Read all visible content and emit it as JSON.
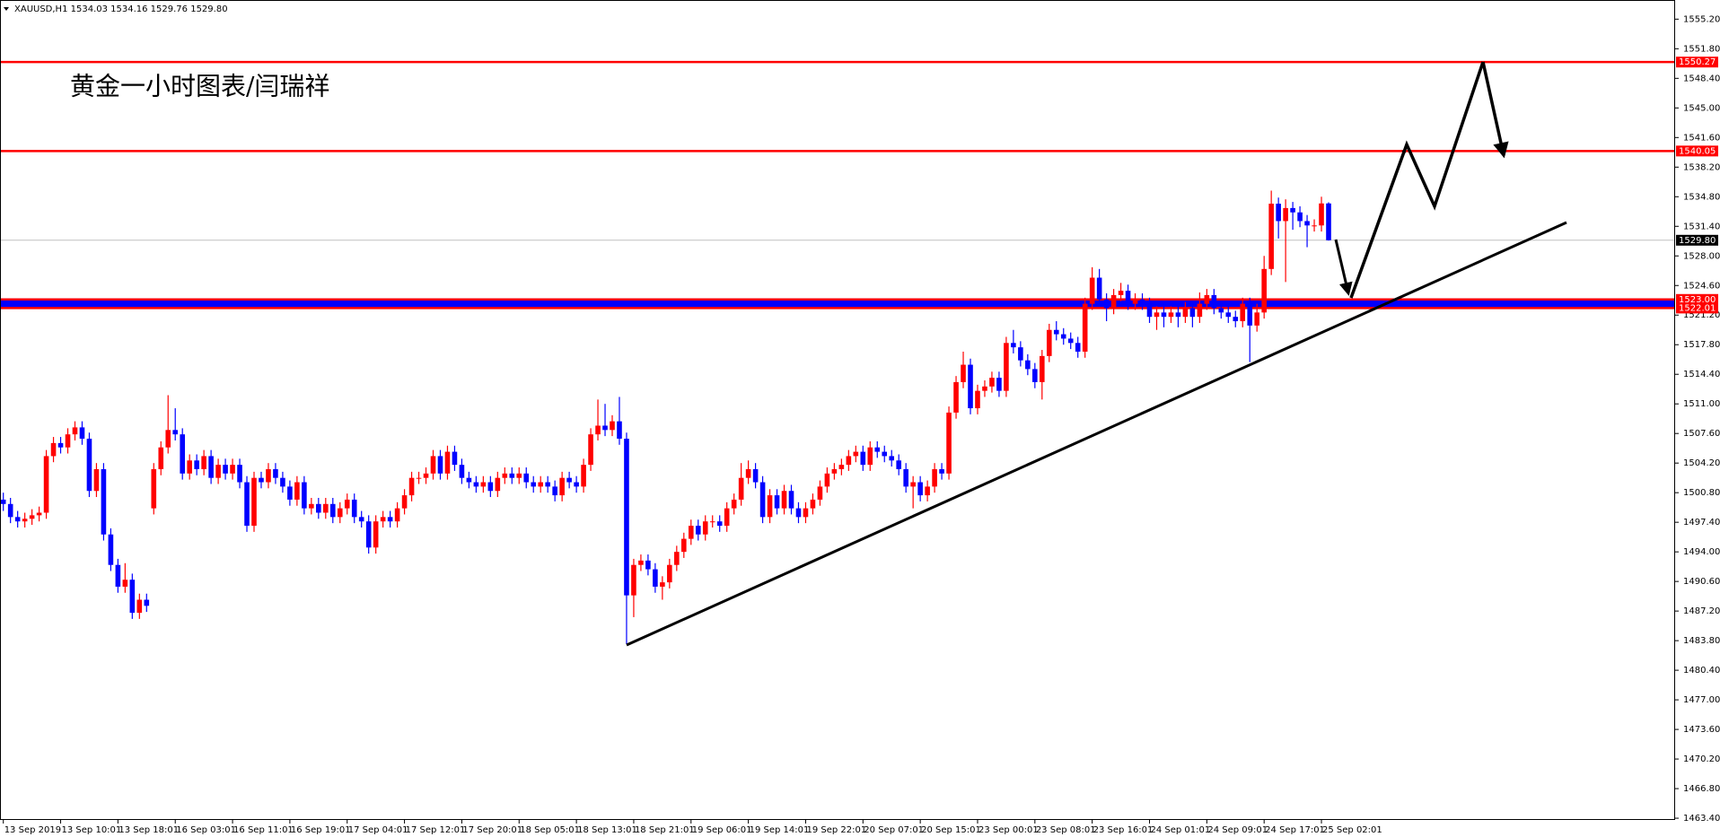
{
  "chart_data": {
    "type": "candlestick",
    "header": "XAUUSD,H1  1534.03 1534.16 1529.76 1529.80",
    "annotation": "黄金一小时图表/闫瑞祥",
    "up_color": "#ff0000",
    "down_color": "#0000ff",
    "ylim": [
      1463.2,
      1557.4
    ],
    "yticks": [
      {
        "value": 1555.2,
        "label": "1555.20"
      },
      {
        "value": 1551.8,
        "label": "1551.80"
      },
      {
        "value": 1548.4,
        "label": "1548.40"
      },
      {
        "value": 1545,
        "label": "1545.00"
      },
      {
        "value": 1541.6,
        "label": "1541.60"
      },
      {
        "value": 1538.2,
        "label": "1538.20"
      },
      {
        "value": 1534.8,
        "label": "1534.80"
      },
      {
        "value": 1531.4,
        "label": "1531.40"
      },
      {
        "value": 1528,
        "label": "1528.00"
      },
      {
        "value": 1524.6,
        "label": "1524.60"
      },
      {
        "value": 1521.2,
        "label": "1521.20"
      },
      {
        "value": 1517.8,
        "label": "1517.80"
      },
      {
        "value": 1514.4,
        "label": "1514.40"
      },
      {
        "value": 1511,
        "label": "1511.00"
      },
      {
        "value": 1507.6,
        "label": "1507.60"
      },
      {
        "value": 1504.2,
        "label": "1504.20"
      },
      {
        "value": 1500.8,
        "label": "1500.80"
      },
      {
        "value": 1497.4,
        "label": "1497.40"
      },
      {
        "value": 1494,
        "label": "1494.00"
      },
      {
        "value": 1490.6,
        "label": "1490.60"
      },
      {
        "value": 1487.2,
        "label": "1487.20"
      },
      {
        "value": 1483.8,
        "label": "1483.80"
      },
      {
        "value": 1480.4,
        "label": "1480.40"
      },
      {
        "value": 1477,
        "label": "1477.00"
      },
      {
        "value": 1473.6,
        "label": "1473.60"
      },
      {
        "value": 1470.2,
        "label": "1470.20"
      },
      {
        "value": 1466.8,
        "label": "1466.80"
      },
      {
        "value": 1463.4,
        "label": "1463.40"
      }
    ],
    "xticks": [
      {
        "value": 0,
        "label": "13 Sep 2019"
      },
      {
        "value": 8,
        "label": "13 Sep 10:01"
      },
      {
        "value": 16,
        "label": "13 Sep 18:01"
      },
      {
        "value": 24,
        "label": "16 Sep 03:01"
      },
      {
        "value": 32,
        "label": "16 Sep 11:01"
      },
      {
        "value": 40,
        "label": "16 Sep 19:01"
      },
      {
        "value": 48,
        "label": "17 Sep 04:01"
      },
      {
        "value": 56,
        "label": "17 Sep 12:01"
      },
      {
        "value": 64,
        "label": "17 Sep 20:01"
      },
      {
        "value": 72,
        "label": "18 Sep 05:01"
      },
      {
        "value": 80,
        "label": "18 Sep 13:01"
      },
      {
        "value": 88,
        "label": "18 Sep 21:01"
      },
      {
        "value": 96,
        "label": "19 Sep 06:01"
      },
      {
        "value": 104,
        "label": "19 Sep 14:01"
      },
      {
        "value": 112,
        "label": "19 Sep 22:01"
      },
      {
        "value": 120,
        "label": "20 Sep 07:01"
      },
      {
        "value": 128,
        "label": "20 Sep 15:01"
      },
      {
        "value": 136,
        "label": "23 Sep 00:01"
      },
      {
        "value": 144,
        "label": "23 Sep 08:01"
      },
      {
        "value": 152,
        "label": "23 Sep 16:01"
      },
      {
        "value": 160,
        "label": "24 Sep 01:01"
      },
      {
        "value": 168,
        "label": "24 Sep 09:01"
      },
      {
        "value": 176,
        "label": "24 Sep 17:01"
      },
      {
        "value": 184,
        "label": "25 Sep 02:01"
      }
    ],
    "levels": [
      {
        "value": 1550.27,
        "label": "1550.27",
        "color": "#ff0000",
        "tag_color": "#ff0000"
      },
      {
        "value": 1540.05,
        "label": "1540.05",
        "color": "#ff0000",
        "tag_color": "#ff0000"
      },
      {
        "value": 1529.8,
        "label": "1529.80",
        "color": "#c0c0c0",
        "tag_color": "#000000"
      },
      {
        "value": 1523,
        "label": "1523.00",
        "color": "#ff0000",
        "tag_color": "#ff0000"
      },
      {
        "value": 1522.01,
        "label": "1522.01",
        "color": "#ff0000",
        "tag_color": "#ff0000"
      }
    ],
    "band_color": "#0000ff",
    "ohlc": [
      [
        1500.0,
        1500.8,
        1498.7,
        1499.5
      ],
      [
        1499.5,
        1500.2,
        1497.3,
        1498.0
      ],
      [
        1498.0,
        1498.7,
        1496.8,
        1497.5
      ],
      [
        1497.5,
        1498.5,
        1496.8,
        1497.8
      ],
      [
        1497.8,
        1498.9,
        1497.1,
        1498.2
      ],
      [
        1498.2,
        1499.2,
        1497.5,
        1498.5
      ],
      [
        1498.5,
        1505.7,
        1497.8,
        1505.0
      ],
      [
        1505.0,
        1507.2,
        1504.3,
        1506.5
      ],
      [
        1506.5,
        1507.2,
        1505.3,
        1506.0
      ],
      [
        1506.0,
        1508.2,
        1505.3,
        1507.5
      ],
      [
        1507.5,
        1509.0,
        1506.8,
        1508.3
      ],
      [
        1508.3,
        1509.0,
        1506.3,
        1507.0
      ],
      [
        1507.0,
        1507.7,
        1500.3,
        1501.0
      ],
      [
        1501.0,
        1504.2,
        1500.3,
        1503.5
      ],
      [
        1503.5,
        1504.2,
        1495.3,
        1496.0
      ],
      [
        1496.0,
        1496.7,
        1491.8,
        1492.5
      ],
      [
        1492.5,
        1493.2,
        1489.3,
        1490.0
      ],
      [
        1490.0,
        1492.7,
        1489.3,
        1490.8
      ],
      [
        1490.8,
        1491.5,
        1486.3,
        1487.0
      ],
      [
        1487.0,
        1489.2,
        1486.3,
        1488.5
      ],
      [
        1488.5,
        1489.2,
        1487.1,
        1487.8
      ],
      [
        1499.0,
        1504.2,
        1498.3,
        1503.5
      ],
      [
        1503.5,
        1506.7,
        1502.8,
        1506.0
      ],
      [
        1506.0,
        1512.0,
        1505.3,
        1508.0
      ],
      [
        1508.0,
        1510.5,
        1506.8,
        1507.5
      ],
      [
        1507.5,
        1508.2,
        1502.3,
        1503.0
      ],
      [
        1503.0,
        1505.2,
        1502.3,
        1504.5
      ],
      [
        1504.5,
        1505.2,
        1502.8,
        1503.5
      ],
      [
        1503.5,
        1505.7,
        1502.8,
        1505.0
      ],
      [
        1505.0,
        1505.7,
        1501.8,
        1502.5
      ],
      [
        1502.5,
        1504.7,
        1501.8,
        1504.0
      ],
      [
        1504.0,
        1504.7,
        1502.3,
        1503.0
      ],
      [
        1503.0,
        1504.7,
        1502.3,
        1504.0
      ],
      [
        1504.0,
        1504.7,
        1501.3,
        1502.0
      ],
      [
        1502.0,
        1502.7,
        1496.3,
        1497.0
      ],
      [
        1497.0,
        1503.2,
        1496.3,
        1502.5
      ],
      [
        1502.5,
        1503.2,
        1501.3,
        1502.0
      ],
      [
        1502.0,
        1504.2,
        1501.3,
        1503.5
      ],
      [
        1503.5,
        1504.2,
        1501.8,
        1502.5
      ],
      [
        1502.5,
        1503.2,
        1500.8,
        1501.5
      ],
      [
        1501.5,
        1502.2,
        1499.3,
        1500.0
      ],
      [
        1500.0,
        1502.7,
        1499.3,
        1502.0
      ],
      [
        1502.0,
        1502.7,
        1498.3,
        1499.0
      ],
      [
        1499.0,
        1500.2,
        1498.3,
        1499.5
      ],
      [
        1499.5,
        1500.2,
        1497.8,
        1498.5
      ],
      [
        1498.5,
        1500.2,
        1497.8,
        1499.5
      ],
      [
        1499.5,
        1500.2,
        1497.3,
        1498.0
      ],
      [
        1498.0,
        1499.7,
        1497.3,
        1499.0
      ],
      [
        1499.0,
        1500.7,
        1498.3,
        1500.0
      ],
      [
        1500.0,
        1500.7,
        1497.3,
        1498.0
      ],
      [
        1498.0,
        1498.7,
        1496.8,
        1497.5
      ],
      [
        1497.5,
        1498.2,
        1493.8,
        1494.5
      ],
      [
        1494.5,
        1498.2,
        1493.8,
        1497.5
      ],
      [
        1497.5,
        1498.7,
        1496.8,
        1498.0
      ],
      [
        1498.0,
        1498.7,
        1496.8,
        1497.5
      ],
      [
        1497.5,
        1499.7,
        1496.8,
        1499.0
      ],
      [
        1499.0,
        1501.2,
        1498.3,
        1500.5
      ],
      [
        1500.5,
        1503.2,
        1499.8,
        1502.5
      ],
      [
        1502.5,
        1503.2,
        1501.8,
        1502.5
      ],
      [
        1502.5,
        1503.7,
        1501.8,
        1503.0
      ],
      [
        1503.0,
        1505.7,
        1502.3,
        1505.0
      ],
      [
        1505.0,
        1505.7,
        1502.3,
        1503.0
      ],
      [
        1503.0,
        1506.2,
        1502.3,
        1505.5
      ],
      [
        1505.5,
        1506.2,
        1503.3,
        1504.0
      ],
      [
        1504.0,
        1504.7,
        1501.8,
        1502.5
      ],
      [
        1502.5,
        1503.2,
        1501.3,
        1502.0
      ],
      [
        1502.0,
        1502.7,
        1500.8,
        1501.5
      ],
      [
        1501.5,
        1502.7,
        1500.8,
        1502.0
      ],
      [
        1502.0,
        1502.7,
        1500.3,
        1501.0
      ],
      [
        1501.0,
        1503.2,
        1500.3,
        1502.5
      ],
      [
        1502.5,
        1503.7,
        1501.8,
        1503.0
      ],
      [
        1503.0,
        1503.7,
        1501.8,
        1502.5
      ],
      [
        1502.5,
        1503.7,
        1501.8,
        1503.0
      ],
      [
        1503.0,
        1503.7,
        1501.3,
        1502.0
      ],
      [
        1502.0,
        1502.7,
        1500.8,
        1501.5
      ],
      [
        1501.5,
        1502.7,
        1500.8,
        1502.0
      ],
      [
        1502.0,
        1502.7,
        1500.8,
        1501.5
      ],
      [
        1501.5,
        1502.2,
        1499.8,
        1500.5
      ],
      [
        1500.5,
        1503.2,
        1499.8,
        1502.5
      ],
      [
        1502.5,
        1503.2,
        1501.3,
        1502.0
      ],
      [
        1502.0,
        1502.7,
        1500.8,
        1501.5
      ],
      [
        1501.5,
        1504.7,
        1500.8,
        1504.0
      ],
      [
        1504.0,
        1508.2,
        1503.3,
        1507.5
      ],
      [
        1507.5,
        1511.5,
        1506.8,
        1508.5
      ],
      [
        1508.5,
        1511.0,
        1507.3,
        1508.0
      ],
      [
        1508.0,
        1509.7,
        1507.3,
        1509.0
      ],
      [
        1509.0,
        1511.8,
        1506.3,
        1507.0
      ],
      [
        1507.0,
        1507.7,
        1483.4,
        1489.0
      ],
      [
        1489.0,
        1493.2,
        1486.5,
        1492.5
      ],
      [
        1492.5,
        1493.7,
        1491.8,
        1493.0
      ],
      [
        1493.0,
        1493.7,
        1491.3,
        1492.0
      ],
      [
        1492.0,
        1492.7,
        1489.3,
        1490.0
      ],
      [
        1490.0,
        1491.2,
        1488.5,
        1490.5
      ],
      [
        1490.5,
        1493.2,
        1489.8,
        1492.5
      ],
      [
        1492.5,
        1494.7,
        1491.8,
        1494.0
      ],
      [
        1494.0,
        1496.2,
        1493.3,
        1495.5
      ],
      [
        1495.5,
        1497.7,
        1494.8,
        1497.0
      ],
      [
        1497.0,
        1497.7,
        1495.3,
        1496.0
      ],
      [
        1496.0,
        1498.2,
        1495.3,
        1497.5
      ],
      [
        1497.5,
        1498.2,
        1496.8,
        1497.5
      ],
      [
        1497.5,
        1498.2,
        1496.3,
        1497.0
      ],
      [
        1497.0,
        1499.7,
        1496.3,
        1499.0
      ],
      [
        1499.0,
        1500.7,
        1498.3,
        1500.0
      ],
      [
        1500.0,
        1504.2,
        1499.3,
        1502.5
      ],
      [
        1502.5,
        1504.5,
        1501.8,
        1503.5
      ],
      [
        1503.5,
        1504.2,
        1501.3,
        1502.0
      ],
      [
        1502.0,
        1502.7,
        1497.3,
        1498.0
      ],
      [
        1498.0,
        1501.2,
        1497.3,
        1500.5
      ],
      [
        1500.5,
        1501.2,
        1498.3,
        1499.0
      ],
      [
        1499.0,
        1501.7,
        1498.3,
        1501.0
      ],
      [
        1501.0,
        1501.7,
        1498.3,
        1499.0
      ],
      [
        1499.0,
        1499.7,
        1497.3,
        1498.0
      ],
      [
        1498.0,
        1499.7,
        1497.3,
        1499.0
      ],
      [
        1499.0,
        1500.7,
        1498.3,
        1500.0
      ],
      [
        1500.0,
        1502.2,
        1499.3,
        1501.5
      ],
      [
        1501.5,
        1503.7,
        1500.8,
        1503.0
      ],
      [
        1503.0,
        1504.2,
        1502.3,
        1503.5
      ],
      [
        1503.5,
        1504.7,
        1502.8,
        1504.0
      ],
      [
        1504.0,
        1505.7,
        1503.3,
        1505.0
      ],
      [
        1505.0,
        1506.2,
        1504.3,
        1505.5
      ],
      [
        1505.5,
        1506.2,
        1503.3,
        1504.0
      ],
      [
        1504.0,
        1506.7,
        1503.3,
        1506.0
      ],
      [
        1506.0,
        1506.7,
        1504.8,
        1505.5
      ],
      [
        1505.5,
        1506.2,
        1504.3,
        1505.0
      ],
      [
        1505.0,
        1505.7,
        1503.8,
        1504.5
      ],
      [
        1504.5,
        1505.2,
        1502.8,
        1503.5
      ],
      [
        1503.5,
        1504.2,
        1500.8,
        1501.5
      ],
      [
        1501.5,
        1502.7,
        1499.0,
        1502.0
      ],
      [
        1502.0,
        1502.7,
        1499.8,
        1500.5
      ],
      [
        1500.5,
        1502.2,
        1499.8,
        1501.5
      ],
      [
        1501.5,
        1504.2,
        1500.8,
        1503.5
      ],
      [
        1503.5,
        1504.2,
        1502.3,
        1503.0
      ],
      [
        1503.0,
        1510.7,
        1502.3,
        1510.0
      ],
      [
        1510.0,
        1514.2,
        1509.3,
        1513.5
      ],
      [
        1513.5,
        1517.0,
        1512.8,
        1515.5
      ],
      [
        1515.5,
        1516.2,
        1509.8,
        1510.5
      ],
      [
        1510.5,
        1513.2,
        1509.8,
        1512.5
      ],
      [
        1512.5,
        1513.7,
        1511.8,
        1513.0
      ],
      [
        1513.0,
        1514.7,
        1512.3,
        1514.0
      ],
      [
        1514.0,
        1514.7,
        1511.8,
        1512.5
      ],
      [
        1512.5,
        1518.7,
        1511.8,
        1518.0
      ],
      [
        1518.0,
        1519.5,
        1516.8,
        1517.5
      ],
      [
        1517.5,
        1518.2,
        1515.3,
        1516.0
      ],
      [
        1516.0,
        1516.7,
        1514.3,
        1515.0
      ],
      [
        1515.0,
        1515.7,
        1512.8,
        1513.5
      ],
      [
        1513.5,
        1517.2,
        1511.5,
        1516.5
      ],
      [
        1516.5,
        1520.2,
        1515.8,
        1519.5
      ],
      [
        1519.5,
        1520.5,
        1518.3,
        1519.0
      ],
      [
        1519.0,
        1519.7,
        1517.8,
        1518.5
      ],
      [
        1518.5,
        1519.2,
        1517.3,
        1518.0
      ],
      [
        1518.0,
        1518.7,
        1516.3,
        1517.0
      ],
      [
        1517.0,
        1523.2,
        1516.3,
        1522.5
      ],
      [
        1522.5,
        1526.7,
        1521.8,
        1525.5
      ],
      [
        1525.5,
        1526.5,
        1522.3,
        1523.0
      ],
      [
        1523.0,
        1523.7,
        1520.5,
        1522.0
      ],
      [
        1522.0,
        1524.2,
        1521.3,
        1523.5
      ],
      [
        1523.5,
        1524.9,
        1522.8,
        1524.0
      ],
      [
        1524.0,
        1524.7,
        1521.8,
        1522.5
      ],
      [
        1522.5,
        1523.7,
        1521.8,
        1523.0
      ],
      [
        1523.0,
        1523.7,
        1521.8,
        1522.5
      ],
      [
        1522.5,
        1523.2,
        1520.3,
        1521.0
      ],
      [
        1521.0,
        1522.2,
        1519.5,
        1521.5
      ],
      [
        1521.5,
        1522.2,
        1519.8,
        1521.0
      ],
      [
        1521.0,
        1522.2,
        1520.3,
        1521.5
      ],
      [
        1521.5,
        1522.2,
        1519.8,
        1521.0
      ],
      [
        1521.0,
        1522.7,
        1520.3,
        1522.0
      ],
      [
        1522.0,
        1522.7,
        1519.8,
        1521.0
      ],
      [
        1521.0,
        1523.8,
        1520.3,
        1522.5
      ],
      [
        1522.5,
        1524.2,
        1521.8,
        1523.5
      ],
      [
        1523.5,
        1524.2,
        1521.3,
        1522.0
      ],
      [
        1522.0,
        1522.7,
        1520.8,
        1521.5
      ],
      [
        1521.5,
        1522.2,
        1520.3,
        1521.0
      ],
      [
        1521.0,
        1521.7,
        1519.8,
        1520.5
      ],
      [
        1520.5,
        1523.2,
        1519.8,
        1522.5
      ],
      [
        1522.5,
        1523.2,
        1515.8,
        1520.0
      ],
      [
        1520.0,
        1522.5,
        1519.3,
        1521.5
      ],
      [
        1521.5,
        1528.0,
        1520.8,
        1526.5
      ],
      [
        1526.5,
        1535.5,
        1525.8,
        1534.0
      ],
      [
        1534.0,
        1534.7,
        1530.0,
        1532.0
      ],
      [
        1532.0,
        1534.5,
        1525.0,
        1533.5
      ],
      [
        1533.5,
        1534.2,
        1531.0,
        1533.0
      ],
      [
        1533.0,
        1533.7,
        1531.3,
        1532.0
      ],
      [
        1532.0,
        1532.7,
        1529.0,
        1531.5
      ],
      [
        1531.5,
        1532.2,
        1530.8,
        1531.5
      ],
      [
        1531.5,
        1534.8,
        1530.8,
        1534.03
      ],
      [
        1534.03,
        1534.16,
        1529.76,
        1529.8
      ]
    ]
  }
}
